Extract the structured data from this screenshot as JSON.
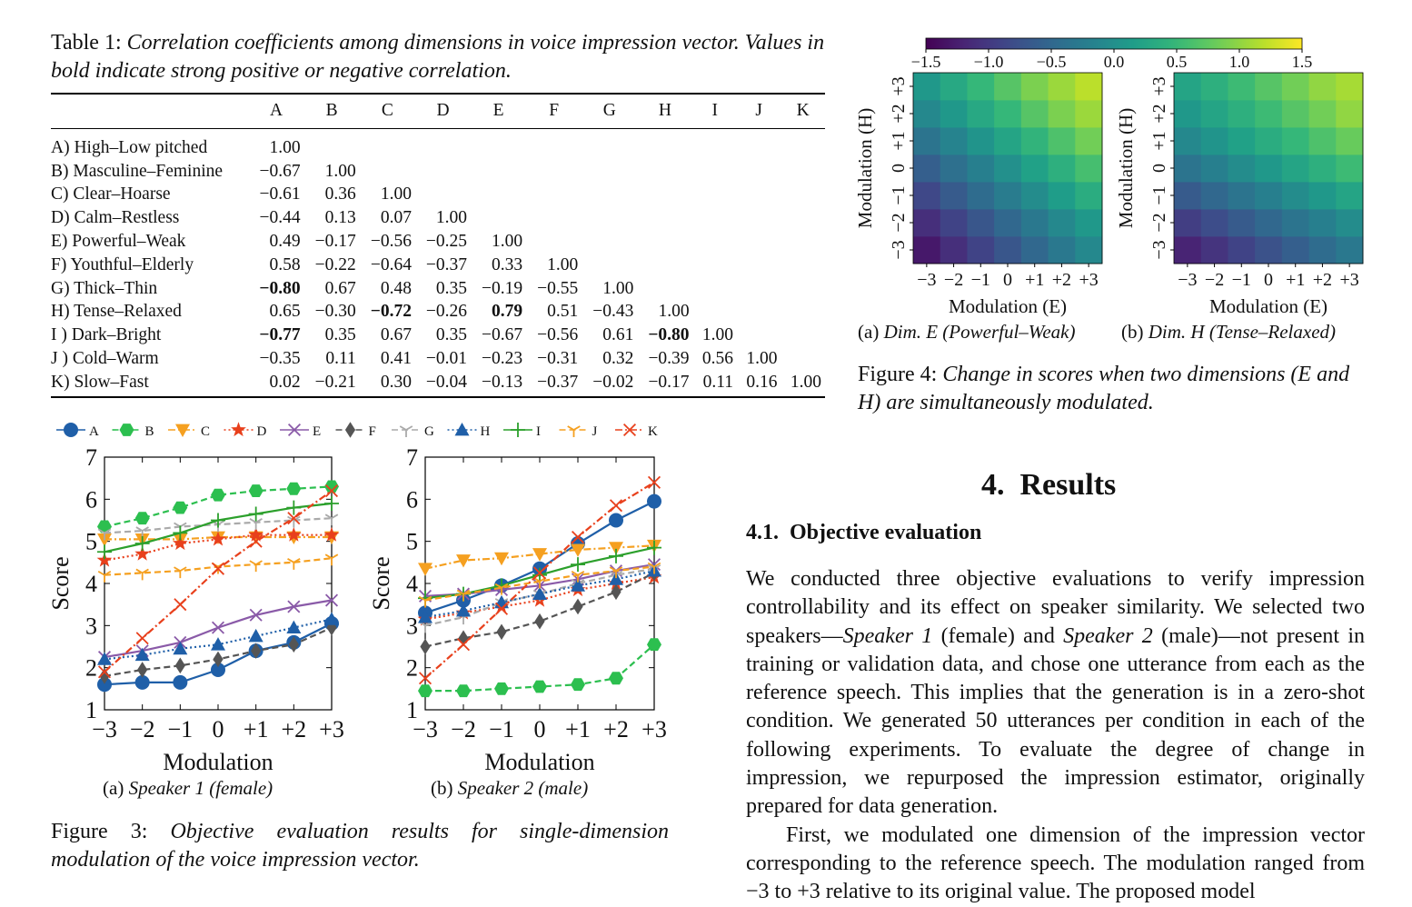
{
  "table": {
    "caption_label": "Table 1:",
    "caption_text": "Correlation coefficients among dimensions in voice impression vector. Values in bold indicate strong positive or negative correlation.",
    "headers": [
      "",
      "A",
      "B",
      "C",
      "D",
      "E",
      "F",
      "G",
      "H",
      "I",
      "J",
      "K"
    ],
    "rows": [
      {
        "label": "A) High–Low pitched",
        "values": [
          "1.00"
        ]
      },
      {
        "label": "B) Masculine–Feminine",
        "values": [
          "−0.67",
          "1.00"
        ]
      },
      {
        "label": "C) Clear–Hoarse",
        "values": [
          "−0.61",
          "0.36",
          "1.00"
        ]
      },
      {
        "label": "D) Calm–Restless",
        "values": [
          "−0.44",
          "0.13",
          "0.07",
          "1.00"
        ]
      },
      {
        "label": "E) Powerful–Weak",
        "values": [
          "0.49",
          "−0.17",
          "−0.56",
          "−0.25",
          "1.00"
        ]
      },
      {
        "label": "F) Youthful–Elderly",
        "values": [
          "0.58",
          "−0.22",
          "−0.64",
          "−0.37",
          "0.33",
          "1.00"
        ]
      },
      {
        "label": "G) Thick–Thin",
        "values": [
          "−0.80",
          "0.67",
          "0.48",
          "0.35",
          "−0.19",
          "−0.55",
          "1.00"
        ],
        "bold": [
          0
        ]
      },
      {
        "label": "H) Tense–Relaxed",
        "values": [
          "0.65",
          "−0.30",
          "−0.72",
          "−0.26",
          "0.79",
          "0.51",
          "−0.43",
          "1.00"
        ],
        "bold": [
          2,
          4
        ]
      },
      {
        "label": "I ) Dark–Bright",
        "values": [
          "−0.77",
          "0.35",
          "0.67",
          "0.35",
          "−0.67",
          "−0.56",
          "0.61",
          "−0.80",
          "1.00"
        ],
        "bold": [
          0,
          7
        ]
      },
      {
        "label": "J ) Cold–Warm",
        "values": [
          "−0.35",
          "0.11",
          "0.41",
          "−0.01",
          "−0.23",
          "−0.31",
          "0.32",
          "−0.39",
          "0.56",
          "1.00"
        ]
      },
      {
        "label": "K) Slow–Fast",
        "values": [
          "0.02",
          "−0.21",
          "0.30",
          "−0.04",
          "−0.13",
          "−0.37",
          "−0.02",
          "−0.17",
          "0.11",
          "0.16",
          "1.00"
        ]
      }
    ]
  },
  "figure3": {
    "caption_label": "Figure 3:",
    "caption_text": "Objective evaluation results for single-dimension modulation of the voice impression vector.",
    "subcaption_a_prefix": "(a)",
    "subcaption_a": "Speaker 1 (female)",
    "subcaption_b_prefix": "(b)",
    "subcaption_b": "Speaker 2 (male)"
  },
  "figure4": {
    "caption_label": "Figure 4:",
    "caption_text": "Change in scores when two dimensions (E and H) are simultaneously modulated.",
    "subcaption_a_prefix": "(a)",
    "subcaption_a": "Dim. E (Powerful–Weak)",
    "subcaption_b_prefix": "(b)",
    "subcaption_b": "Dim. H (Tense–Relaxed)"
  },
  "section": {
    "heading": "4.  Results",
    "subheading": "4.1.  Objective evaluation",
    "paragraph1_html": "We conducted three objective evaluations to verify impression controllability and its effect on speaker similarity. We selected two speakers—<i>Speaker 1</i> (female) and <i>Speaker 2</i> (male)—not present in training or validation data, and chose one utterance from each as the reference speech. This implies that the generation is in a zero-shot condition. We generated 50 utterances per condition in each of the following experiments. To evaluate the degree of change in impression, we repurposed the impression estimator, originally prepared for data generation.",
    "paragraph2_html": "First, we modulated one dimension of the impression vector corresponding to the reference speech. The modulation ranged from −3 to +3 relative to its original value. The proposed model"
  },
  "chart_data": [
    {
      "type": "line",
      "title": "(a) Speaker 1 (female)",
      "xlabel": "Modulation",
      "ylabel": "Score",
      "x": [
        "−3",
        "−2",
        "−1",
        "0",
        "+1",
        "+2",
        "+3"
      ],
      "ylim": [
        1,
        7
      ],
      "legend_position": "top",
      "series": [
        {
          "name": "A",
          "color": "#1f5fa8",
          "marker": "circle",
          "dash": "solid",
          "values": [
            1.6,
            1.65,
            1.65,
            1.95,
            2.4,
            2.6,
            3.05
          ]
        },
        {
          "name": "B",
          "color": "#2cbf4f",
          "marker": "hexagon",
          "dash": "dashed",
          "values": [
            5.35,
            5.55,
            5.8,
            6.1,
            6.2,
            6.25,
            6.3
          ]
        },
        {
          "name": "C",
          "color": "#f5a020",
          "marker": "triangle-down",
          "dash": "dashdot",
          "values": [
            5.05,
            5.05,
            5.05,
            5.1,
            5.1,
            5.1,
            5.1
          ]
        },
        {
          "name": "D",
          "color": "#e8401c",
          "marker": "star",
          "dash": "dotted",
          "values": [
            4.55,
            4.7,
            4.95,
            5.05,
            5.15,
            5.15,
            5.15
          ]
        },
        {
          "name": "E",
          "color": "#8a5aa8",
          "marker": "x",
          "dash": "solid",
          "values": [
            2.25,
            2.4,
            2.6,
            2.95,
            3.25,
            3.45,
            3.6
          ]
        },
        {
          "name": "F",
          "color": "#555555",
          "marker": "diamond",
          "dash": "dashed",
          "values": [
            1.8,
            1.95,
            2.05,
            2.2,
            2.4,
            2.55,
            2.95
          ]
        },
        {
          "name": "G",
          "color": "#aaaaaa",
          "marker": "tri",
          "dash": "dashed",
          "values": [
            5.2,
            5.25,
            5.35,
            5.4,
            5.45,
            5.5,
            5.55
          ]
        },
        {
          "name": "H",
          "color": "#1f5fa8",
          "marker": "triangle-up",
          "dash": "dotted",
          "values": [
            2.2,
            2.3,
            2.45,
            2.55,
            2.75,
            2.95,
            3.15
          ]
        },
        {
          "name": "I",
          "color": "#2ca02c",
          "marker": "plus",
          "dash": "solid",
          "values": [
            4.75,
            4.95,
            5.2,
            5.5,
            5.65,
            5.8,
            5.9
          ]
        },
        {
          "name": "J",
          "color": "#f5a020",
          "marker": "tri",
          "dash": "dashed",
          "values": [
            4.2,
            4.25,
            4.3,
            4.4,
            4.45,
            4.5,
            4.6
          ]
        },
        {
          "name": "K",
          "color": "#e8401c",
          "marker": "x",
          "dash": "dashdot",
          "values": [
            1.9,
            2.7,
            3.5,
            4.35,
            5.0,
            5.55,
            6.2
          ]
        }
      ]
    },
    {
      "type": "line",
      "title": "(b) Speaker 2 (male)",
      "xlabel": "Modulation",
      "ylabel": "Score",
      "x": [
        "−3",
        "−2",
        "−1",
        "0",
        "+1",
        "+2",
        "+3"
      ],
      "ylim": [
        1,
        7
      ],
      "legend_position": "top",
      "series": [
        {
          "name": "A",
          "color": "#1f5fa8",
          "marker": "circle",
          "dash": "solid",
          "values": [
            3.3,
            3.6,
            3.95,
            4.35,
            4.95,
            5.5,
            5.95
          ]
        },
        {
          "name": "B",
          "color": "#2cbf4f",
          "marker": "hexagon",
          "dash": "dashed",
          "values": [
            1.45,
            1.45,
            1.5,
            1.55,
            1.6,
            1.75,
            2.55
          ]
        },
        {
          "name": "C",
          "color": "#f5a020",
          "marker": "triangle-down",
          "dash": "dashdot",
          "values": [
            4.35,
            4.55,
            4.6,
            4.7,
            4.8,
            4.85,
            4.9
          ]
        },
        {
          "name": "D",
          "color": "#e8401c",
          "marker": "star",
          "dash": "dotted",
          "values": [
            3.15,
            3.3,
            3.45,
            3.6,
            3.85,
            4.0,
            4.15
          ]
        },
        {
          "name": "E",
          "color": "#8a5aa8",
          "marker": "x",
          "dash": "solid",
          "values": [
            3.7,
            3.75,
            3.85,
            3.95,
            4.1,
            4.3,
            4.45
          ]
        },
        {
          "name": "F",
          "color": "#555555",
          "marker": "diamond",
          "dash": "dashed",
          "values": [
            2.5,
            2.7,
            2.85,
            3.1,
            3.45,
            3.8,
            4.25
          ]
        },
        {
          "name": "G",
          "color": "#aaaaaa",
          "marker": "tri",
          "dash": "dashed",
          "values": [
            3.0,
            3.2,
            3.55,
            3.75,
            4.0,
            4.2,
            4.35
          ]
        },
        {
          "name": "H",
          "color": "#1f5fa8",
          "marker": "triangle-up",
          "dash": "dotted",
          "values": [
            3.2,
            3.35,
            3.55,
            3.75,
            3.95,
            4.1,
            4.3
          ]
        },
        {
          "name": "I",
          "color": "#2ca02c",
          "marker": "plus",
          "dash": "solid",
          "values": [
            3.65,
            3.75,
            3.95,
            4.2,
            4.45,
            4.65,
            4.85
          ]
        },
        {
          "name": "J",
          "color": "#f5a020",
          "marker": "tri",
          "dash": "dashed",
          "values": [
            3.6,
            3.75,
            3.9,
            4.05,
            4.2,
            4.3,
            4.4
          ]
        },
        {
          "name": "K",
          "color": "#e8401c",
          "marker": "x",
          "dash": "dashdot",
          "values": [
            1.75,
            2.55,
            3.4,
            4.25,
            5.1,
            5.85,
            6.4
          ]
        }
      ]
    },
    {
      "type": "heatmap",
      "title": "(a) Dim. E (Powerful–Weak)",
      "xlabel": "Modulation (E)",
      "ylabel": "Modulation (H)",
      "x": [
        "−3",
        "−2",
        "−1",
        "0",
        "+1",
        "+2",
        "+3"
      ],
      "y": [
        "−3",
        "−2",
        "−1",
        "0",
        "+1",
        "+2",
        "+3"
      ],
      "colorbar_ticks": [
        "−1.5",
        "−1.0",
        "−0.5",
        "0.0",
        "0.5",
        "1.0",
        "1.5"
      ],
      "zlim": [
        -1.5,
        1.5
      ],
      "values": [
        [
          -1.3,
          -1.1,
          -0.9,
          -0.7,
          -0.5,
          -0.3,
          -0.1
        ],
        [
          -1.1,
          -0.9,
          -0.7,
          -0.5,
          -0.3,
          -0.1,
          0.1
        ],
        [
          -0.85,
          -0.65,
          -0.45,
          -0.25,
          -0.05,
          0.15,
          0.35
        ],
        [
          -0.6,
          -0.4,
          -0.2,
          0.0,
          0.2,
          0.4,
          0.6
        ],
        [
          -0.35,
          -0.15,
          0.05,
          0.25,
          0.45,
          0.65,
          0.85
        ],
        [
          -0.1,
          0.1,
          0.3,
          0.5,
          0.7,
          0.9,
          1.05
        ],
        [
          0.1,
          0.3,
          0.5,
          0.7,
          0.9,
          1.05,
          1.2
        ]
      ]
    },
    {
      "type": "heatmap",
      "title": "(b) Dim. H (Tense–Relaxed)",
      "xlabel": "Modulation (E)",
      "ylabel": "Modulation (H)",
      "x": [
        "−3",
        "−2",
        "−1",
        "0",
        "+1",
        "+2",
        "+3"
      ],
      "y": [
        "−3",
        "−2",
        "−1",
        "0",
        "+1",
        "+2",
        "+3"
      ],
      "zlim": [
        -1.5,
        1.5
      ],
      "values": [
        [
          -1.2,
          -1.05,
          -0.9,
          -0.75,
          -0.6,
          -0.45,
          -0.3
        ],
        [
          -0.95,
          -0.8,
          -0.65,
          -0.5,
          -0.35,
          -0.2,
          -0.05
        ],
        [
          -0.65,
          -0.5,
          -0.35,
          -0.2,
          -0.05,
          0.1,
          0.25
        ],
        [
          -0.35,
          -0.2,
          -0.05,
          0.1,
          0.25,
          0.4,
          0.55
        ],
        [
          -0.1,
          0.05,
          0.2,
          0.35,
          0.5,
          0.65,
          0.8
        ],
        [
          0.1,
          0.25,
          0.4,
          0.55,
          0.7,
          0.85,
          1.0
        ],
        [
          0.25,
          0.4,
          0.55,
          0.7,
          0.85,
          1.0,
          1.1
        ]
      ]
    }
  ]
}
